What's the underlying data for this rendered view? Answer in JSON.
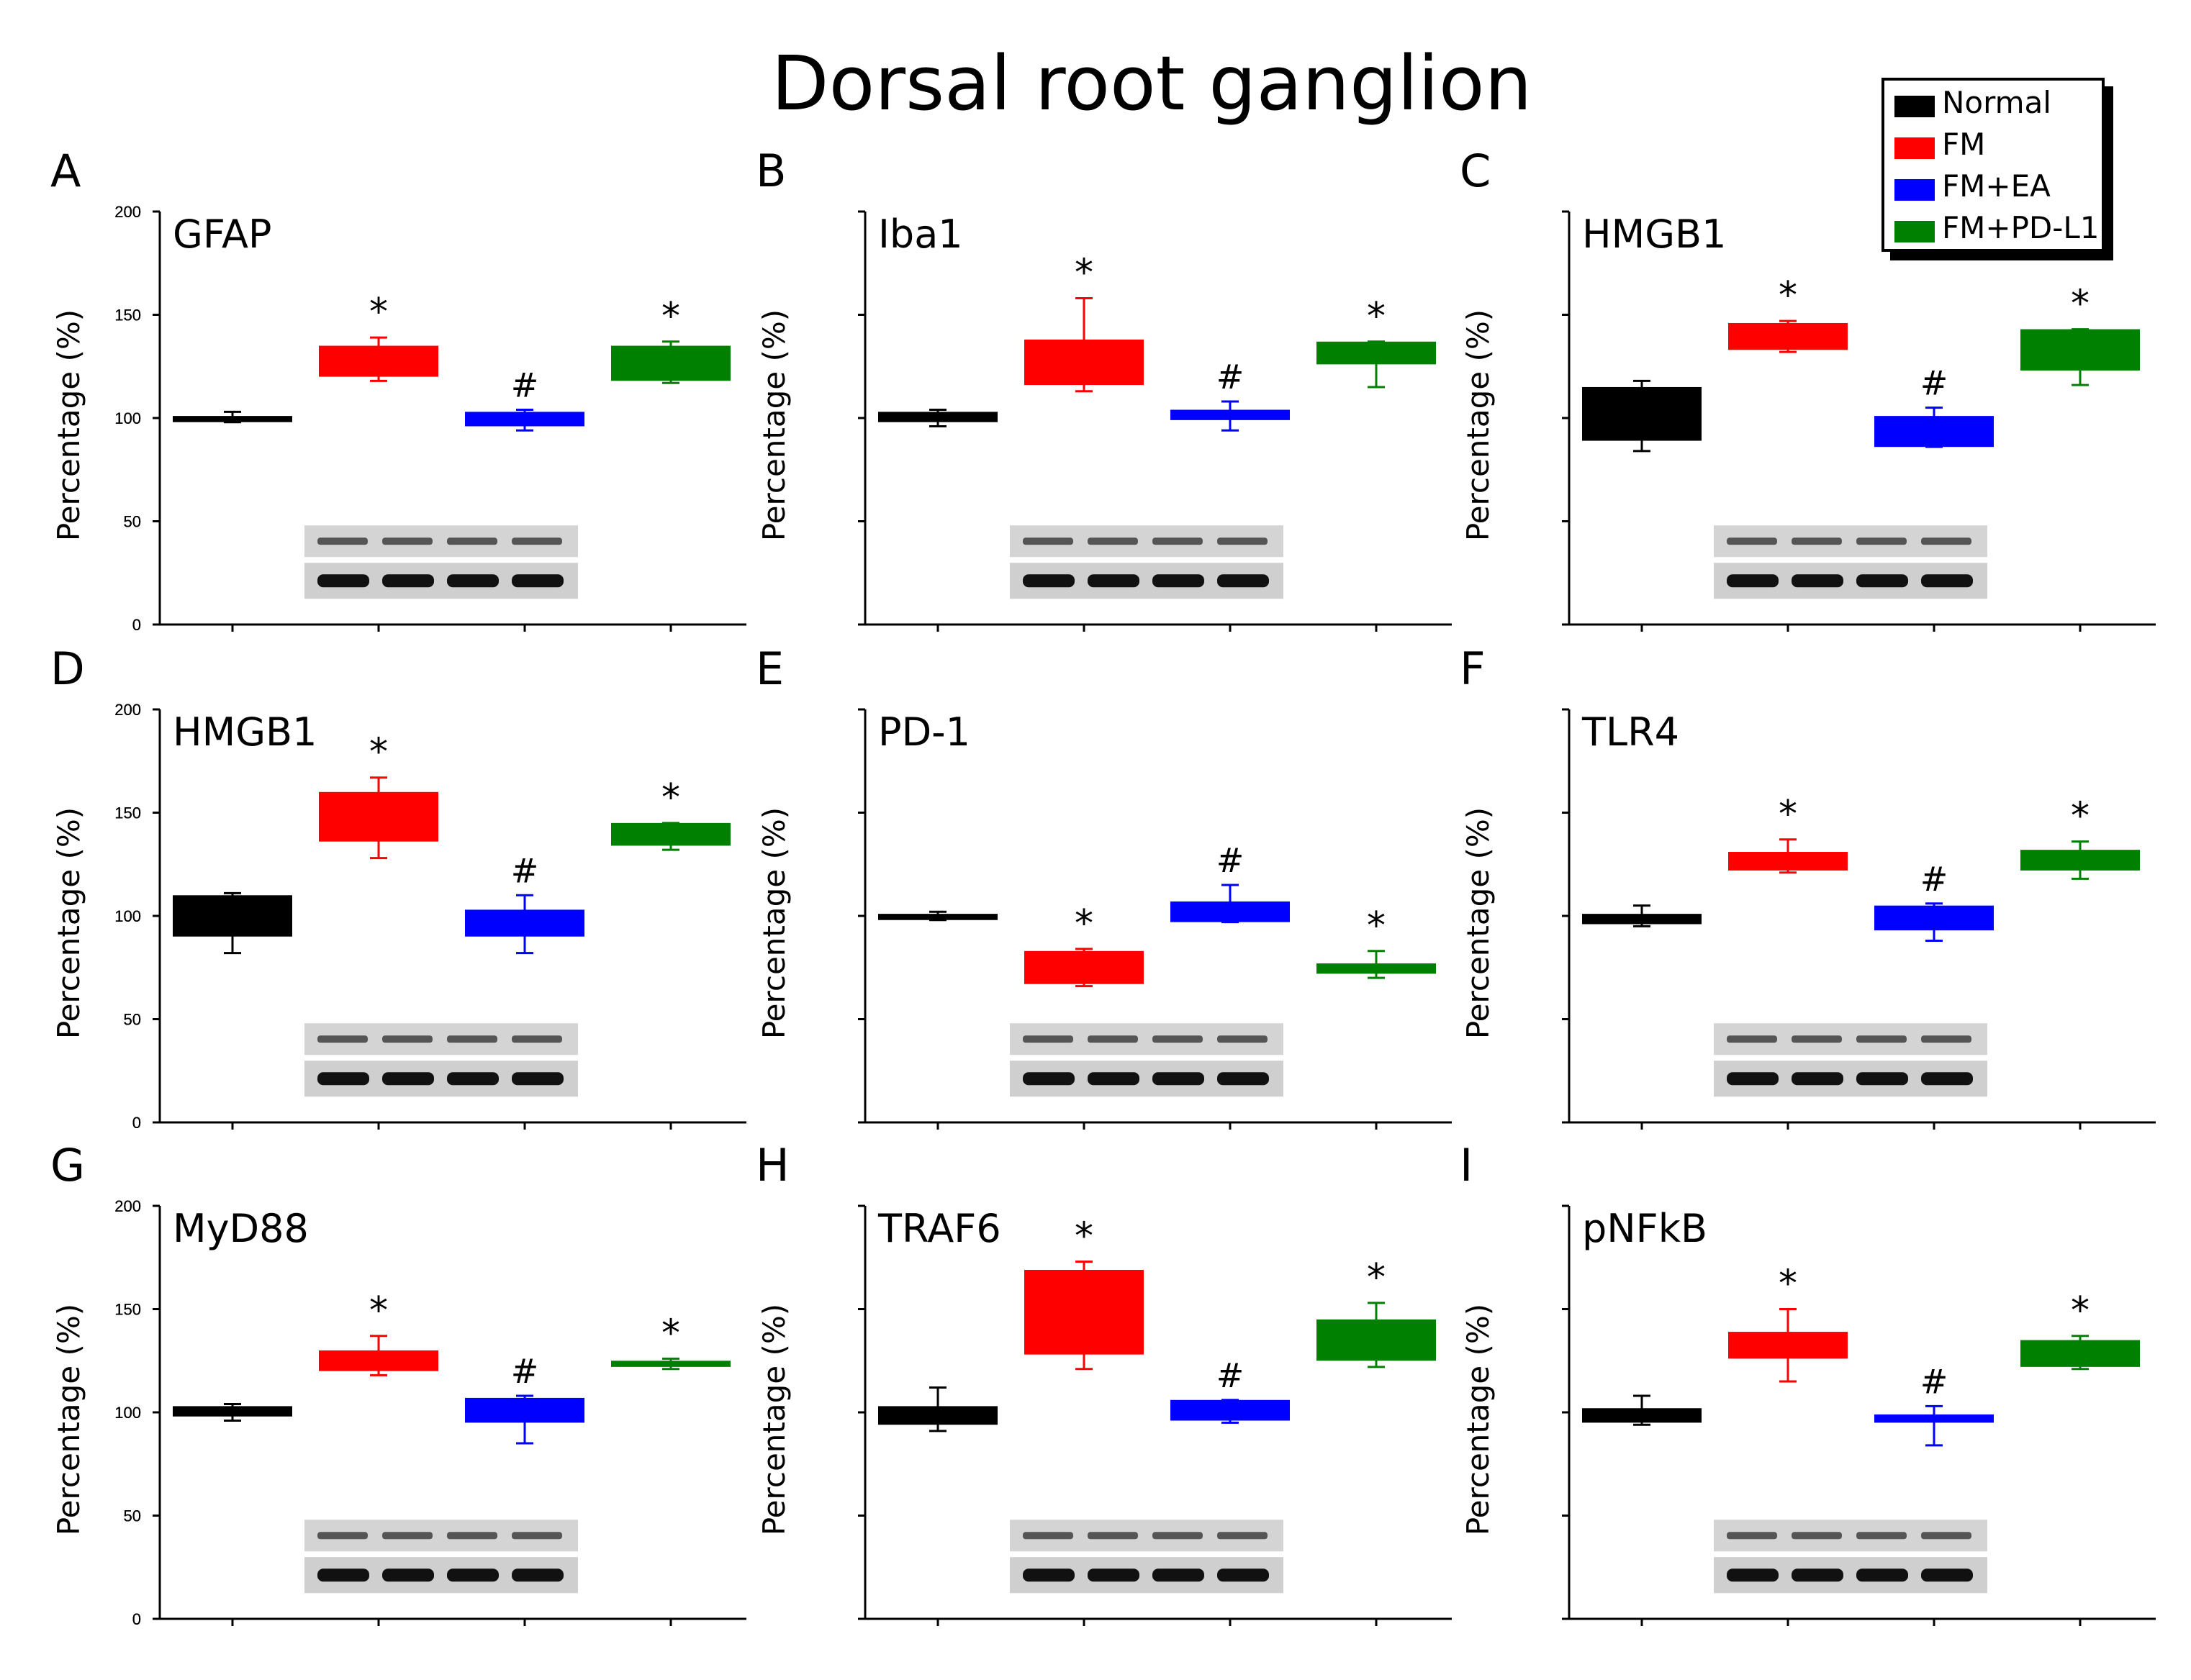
{
  "title": "Dorsal root ganglion",
  "legend": {
    "items": [
      {
        "label": "Normal",
        "color": "#000000"
      },
      {
        "label": "FM",
        "color": "#ff0000"
      },
      {
        "label": "FM+EA",
        "color": "#0000ff"
      },
      {
        "label": "FM+PD-L1",
        "color": "#008000"
      }
    ]
  },
  "chart_data": [
    {
      "type": "bar",
      "panel": "A",
      "protein": "GFAP",
      "ylabel": "Percentage (%)",
      "ylim": [
        0,
        200
      ],
      "yticks": [
        "0",
        "50",
        "100",
        "150",
        "200"
      ],
      "series": [
        {
          "group": "Normal",
          "box": [
            98,
            101
          ],
          "whisker": [
            98,
            103
          ],
          "marker": ""
        },
        {
          "group": "FM",
          "box": [
            120,
            135
          ],
          "whisker": [
            118,
            139
          ],
          "marker": "*"
        },
        {
          "group": "FM+EA",
          "box": [
            96,
            103
          ],
          "whisker": [
            94,
            104
          ],
          "marker": "#"
        },
        {
          "group": "FM+PD-L1",
          "box": [
            118,
            135
          ],
          "whisker": [
            117,
            137
          ],
          "marker": "*"
        }
      ]
    },
    {
      "type": "bar",
      "panel": "B",
      "protein": "Iba1",
      "ylabel": "Percentage (%)",
      "ylim": [
        0,
        200
      ],
      "yticks": [
        "0",
        "50",
        "100",
        "150",
        "200"
      ],
      "series": [
        {
          "group": "Normal",
          "box": [
            98,
            103
          ],
          "whisker": [
            96,
            104
          ],
          "marker": ""
        },
        {
          "group": "FM",
          "box": [
            116,
            138
          ],
          "whisker": [
            113,
            158
          ],
          "marker": "*"
        },
        {
          "group": "FM+EA",
          "box": [
            99,
            104
          ],
          "whisker": [
            94,
            108
          ],
          "marker": "#"
        },
        {
          "group": "FM+PD-L1",
          "box": [
            126,
            137
          ],
          "whisker": [
            115,
            137
          ],
          "marker": "*"
        }
      ]
    },
    {
      "type": "bar",
      "panel": "C",
      "protein": "HMGB1",
      "ylabel": "Percentage (%)",
      "ylim": [
        0,
        200
      ],
      "yticks": [
        "0",
        "50",
        "100",
        "150",
        "200"
      ],
      "series": [
        {
          "group": "Normal",
          "box": [
            89,
            115
          ],
          "whisker": [
            84,
            118
          ],
          "marker": ""
        },
        {
          "group": "FM",
          "box": [
            133,
            146
          ],
          "whisker": [
            132,
            147
          ],
          "marker": "*"
        },
        {
          "group": "FM+EA",
          "box": [
            86,
            101
          ],
          "whisker": [
            86,
            105
          ],
          "marker": "#"
        },
        {
          "group": "FM+PD-L1",
          "box": [
            123,
            143
          ],
          "whisker": [
            116,
            143
          ],
          "marker": "*"
        }
      ]
    },
    {
      "type": "bar",
      "panel": "D",
      "protein": "HMGB1",
      "ylabel": "Percentage (%)",
      "ylim": [
        0,
        200
      ],
      "yticks": [
        "0",
        "50",
        "100",
        "150",
        "200"
      ],
      "series": [
        {
          "group": "Normal",
          "box": [
            90,
            110
          ],
          "whisker": [
            82,
            111
          ],
          "marker": ""
        },
        {
          "group": "FM",
          "box": [
            136,
            160
          ],
          "whisker": [
            128,
            167
          ],
          "marker": "*"
        },
        {
          "group": "FM+EA",
          "box": [
            90,
            103
          ],
          "whisker": [
            82,
            110
          ],
          "marker": "#"
        },
        {
          "group": "FM+PD-L1",
          "box": [
            134,
            145
          ],
          "whisker": [
            132,
            145
          ],
          "marker": "*"
        }
      ]
    },
    {
      "type": "bar",
      "panel": "E",
      "protein": "PD-1",
      "ylabel": "Percentage (%)",
      "ylim": [
        0,
        200
      ],
      "yticks": [
        "0",
        "50",
        "100",
        "150",
        "200"
      ],
      "series": [
        {
          "group": "Normal",
          "box": [
            98,
            101
          ],
          "whisker": [
            98,
            102
          ],
          "marker": ""
        },
        {
          "group": "FM",
          "box": [
            67,
            83
          ],
          "whisker": [
            66,
            84
          ],
          "marker": "*"
        },
        {
          "group": "FM+EA",
          "box": [
            97,
            107
          ],
          "whisker": [
            97,
            115
          ],
          "marker": "#"
        },
        {
          "group": "FM+PD-L1",
          "box": [
            72,
            77
          ],
          "whisker": [
            70,
            83
          ],
          "marker": "*"
        }
      ]
    },
    {
      "type": "bar",
      "panel": "F",
      "protein": "TLR4",
      "ylabel": "Percentage (%)",
      "ylim": [
        0,
        200
      ],
      "yticks": [
        "0",
        "50",
        "100",
        "150",
        "200"
      ],
      "series": [
        {
          "group": "Normal",
          "box": [
            96,
            101
          ],
          "whisker": [
            95,
            105
          ],
          "marker": ""
        },
        {
          "group": "FM",
          "box": [
            122,
            131
          ],
          "whisker": [
            121,
            137
          ],
          "marker": "*"
        },
        {
          "group": "FM+EA",
          "box": [
            93,
            105
          ],
          "whisker": [
            88,
            106
          ],
          "marker": "#"
        },
        {
          "group": "FM+PD-L1",
          "box": [
            122,
            132
          ],
          "whisker": [
            118,
            136
          ],
          "marker": "*"
        }
      ]
    },
    {
      "type": "bar",
      "panel": "G",
      "protein": "MyD88",
      "ylabel": "Percentage (%)",
      "ylim": [
        0,
        200
      ],
      "yticks": [
        "0",
        "50",
        "100",
        "150",
        "200"
      ],
      "series": [
        {
          "group": "Normal",
          "box": [
            98,
            103
          ],
          "whisker": [
            96,
            104
          ],
          "marker": ""
        },
        {
          "group": "FM",
          "box": [
            120,
            130
          ],
          "whisker": [
            118,
            137
          ],
          "marker": "*"
        },
        {
          "group": "FM+EA",
          "box": [
            95,
            107
          ],
          "whisker": [
            85,
            108
          ],
          "marker": "#"
        },
        {
          "group": "FM+PD-L1",
          "box": [
            122,
            125
          ],
          "whisker": [
            121,
            126
          ],
          "marker": "*"
        }
      ]
    },
    {
      "type": "bar",
      "panel": "H",
      "protein": "TRAF6",
      "ylabel": "Percentage (%)",
      "ylim": [
        0,
        200
      ],
      "yticks": [
        "0",
        "50",
        "100",
        "150",
        "200"
      ],
      "series": [
        {
          "group": "Normal",
          "box": [
            94,
            103
          ],
          "whisker": [
            91,
            112
          ],
          "marker": ""
        },
        {
          "group": "FM",
          "box": [
            128,
            169
          ],
          "whisker": [
            121,
            173
          ],
          "marker": "*"
        },
        {
          "group": "FM+EA",
          "box": [
            96,
            106
          ],
          "whisker": [
            95,
            106
          ],
          "marker": "#"
        },
        {
          "group": "FM+PD-L1",
          "box": [
            125,
            145
          ],
          "whisker": [
            122,
            153
          ],
          "marker": "*"
        }
      ]
    },
    {
      "type": "bar",
      "panel": "I",
      "protein": "pNFkB",
      "ylabel": "Percentage (%)",
      "ylim": [
        0,
        200
      ],
      "yticks": [
        "0",
        "50",
        "100",
        "150",
        "200"
      ],
      "series": [
        {
          "group": "Normal",
          "box": [
            95,
            102
          ],
          "whisker": [
            94,
            108
          ],
          "marker": ""
        },
        {
          "group": "FM",
          "box": [
            126,
            139
          ],
          "whisker": [
            115,
            150
          ],
          "marker": "*"
        },
        {
          "group": "FM+EA",
          "box": [
            95,
            99
          ],
          "whisker": [
            84,
            103
          ],
          "marker": "#"
        },
        {
          "group": "FM+PD-L1",
          "box": [
            122,
            135
          ],
          "whisker": [
            121,
            137
          ],
          "marker": "*"
        }
      ]
    }
  ]
}
